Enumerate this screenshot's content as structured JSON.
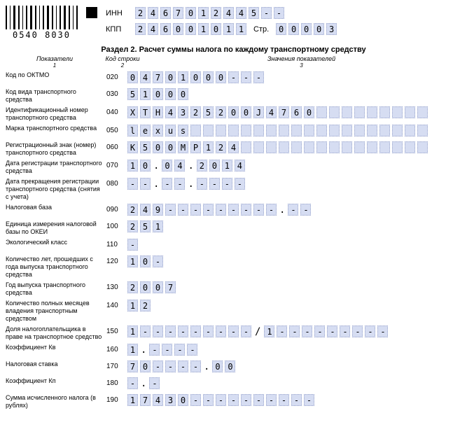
{
  "barcode_number": "0540 8030",
  "header": {
    "inn_label": "ИНН",
    "inn": [
      "2",
      "4",
      "6",
      "7",
      "0",
      "1",
      "2",
      "4",
      "4",
      "5",
      "-",
      "-"
    ],
    "kpp_label": "КПП",
    "kpp": [
      "2",
      "4",
      "6",
      "0",
      "0",
      "1",
      "0",
      "1",
      "1"
    ],
    "page_label": "Стр.",
    "page": [
      "0",
      "0",
      "0",
      "0",
      "3"
    ]
  },
  "section_title": "Раздел 2. Расчет суммы налога по каждому транспортному средству",
  "col_headers": {
    "c1": "Показатели",
    "n1": "1",
    "c2": "Код строки",
    "n2": "2",
    "c3": "Значения показателей",
    "n3": "3"
  },
  "rows": [
    {
      "label": "Код по ОКТМО",
      "code": "020",
      "chars": [
        "0",
        "4",
        "7",
        "0",
        "1",
        "0",
        "0",
        "0",
        "-",
        "-",
        "-"
      ]
    },
    {
      "label": "Код вида транспортного средства",
      "code": "030",
      "chars": [
        "5",
        "1",
        "0",
        "0",
        "0"
      ]
    },
    {
      "label": "Идентификационный номер транспортного средства",
      "code": "040",
      "chars": [
        "X",
        "T",
        "H",
        "4",
        "3",
        "2",
        "5",
        "2",
        "0",
        "0",
        "J",
        "4",
        "7",
        "6",
        "0"
      ],
      "extend": 24
    },
    {
      "label": "Марка транспортного средства",
      "code": "050",
      "chars": [
        "l",
        "e",
        "x",
        "u",
        "s"
      ],
      "extend": 24
    },
    {
      "label": "Регистрационный знак (номер) транспортного средства",
      "code": "060",
      "chars": [
        "K",
        "5",
        "0",
        "0",
        "M",
        "P",
        "1",
        "2",
        "4"
      ],
      "extend": 24
    },
    {
      "label": "Дата регистрации транспортного средства",
      "code": "070",
      "date": [
        [
          "1",
          "0"
        ],
        [
          "0",
          "4"
        ],
        [
          "2",
          "0",
          "1",
          "4"
        ]
      ]
    },
    {
      "label": "Дата прекращения регистрации транспортного средства (снятия с учета)",
      "code": "080",
      "date": [
        [
          "-",
          "-"
        ],
        [
          "-",
          "-"
        ],
        [
          "-",
          "-",
          "-",
          "-"
        ]
      ]
    },
    {
      "label": "Налоговая база",
      "code": "090",
      "intdec": {
        "int": [
          "2",
          "4",
          "9",
          "-",
          "-",
          "-",
          "-",
          "-",
          "-",
          "-",
          "-",
          "-"
        ],
        "dec": [
          "-",
          "-"
        ]
      }
    },
    {
      "label": "Единица измерения налоговой базы по ОКЕИ",
      "code": "100",
      "chars": [
        "2",
        "5",
        "1"
      ]
    },
    {
      "label": "Экологический класс",
      "code": "110",
      "chars": [
        "-"
      ]
    },
    {
      "label": "Количество лет, прошедших с года выпуска транспортного средства",
      "code": "120",
      "chars": [
        "1",
        "0",
        "-"
      ]
    },
    {
      "label": "Год выпуска транспортного средства",
      "code": "130",
      "chars": [
        "2",
        "0",
        "0",
        "7"
      ]
    },
    {
      "label": "Количество полных месяцев владения транспортным средством",
      "code": "140",
      "chars": [
        "1",
        "2"
      ]
    },
    {
      "label": "Доля налогоплательщика в праве на транспортное средство",
      "code": "150",
      "fraction": {
        "num": [
          "1",
          "-",
          "-",
          "-",
          "-",
          "-",
          "-",
          "-",
          "-",
          "-"
        ],
        "den": [
          "1",
          "-",
          "-",
          "-",
          "-",
          "-",
          "-",
          "-",
          "-",
          "-"
        ]
      }
    },
    {
      "label": "Коэффициент Кв",
      "code": "160",
      "intdec": {
        "int": [
          "1"
        ],
        "dec": [
          "-",
          "-",
          "-",
          "-"
        ]
      }
    },
    {
      "label": "Налоговая ставка",
      "code": "170",
      "intdec": {
        "int": [
          "7",
          "0",
          "-",
          "-",
          "-",
          "-"
        ],
        "dec": [
          "0",
          "0"
        ]
      }
    },
    {
      "label": "Коэффициент Кп",
      "code": "180",
      "intdec": {
        "int": [
          "-"
        ],
        "dec": [
          "-"
        ]
      }
    },
    {
      "label": "Сумма исчисленного налога (в рублях)",
      "code": "190",
      "chars": [
        "1",
        "7",
        "4",
        "3",
        "0",
        "-",
        "-",
        "-",
        "-",
        "-",
        "-",
        "-",
        "-",
        "-",
        "-"
      ]
    }
  ]
}
